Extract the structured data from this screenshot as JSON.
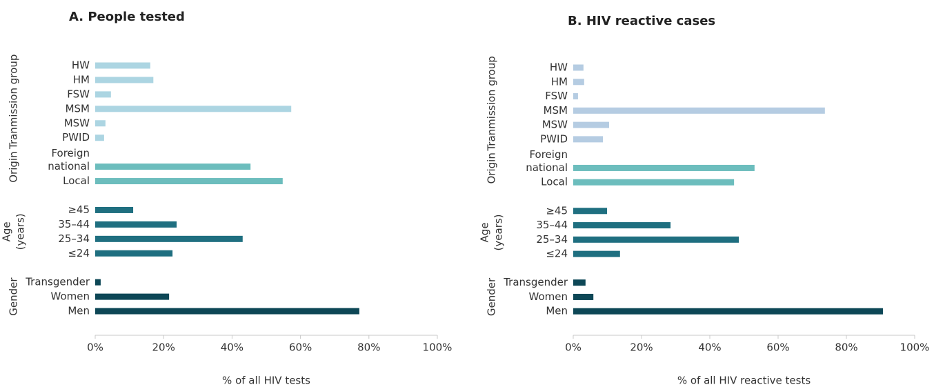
{
  "chart_data": [
    {
      "type": "bar",
      "orientation": "horizontal",
      "title": "A. People tested",
      "xlabel": "% of all HIV tests",
      "xlim": [
        0,
        100
      ],
      "xticks": [
        {
          "value": 0,
          "label": "0%"
        },
        {
          "value": 20,
          "label": "20%"
        },
        {
          "value": 40,
          "label": "40%"
        },
        {
          "value": 60,
          "label": "60%"
        },
        {
          "value": 80,
          "label": "80%"
        },
        {
          "value": 100,
          "label": "100%"
        }
      ],
      "groups": [
        {
          "name": [
            "Tranmission group"
          ],
          "color": "#acd5e2",
          "categories": [
            [
              "HW"
            ],
            [
              "HM"
            ],
            [
              "FSW"
            ],
            [
              "MSM"
            ],
            [
              "MSW"
            ],
            [
              "PWID"
            ]
          ],
          "values": [
            16.1,
            17,
            4.6,
            57.3,
            3,
            2.6
          ]
        },
        {
          "name": [
            "Origin"
          ],
          "color": "#6cbdbd",
          "categories": [
            [
              "Foreign",
              "national"
            ],
            [
              "Local"
            ]
          ],
          "values": [
            45.4,
            54.8
          ]
        },
        {
          "name": [
            "Age",
            "(years)"
          ],
          "color": "#1f6f80",
          "categories": [
            [
              "≥45"
            ],
            [
              "35–44"
            ],
            [
              "25–34"
            ],
            [
              "≤24"
            ]
          ],
          "values": [
            11.1,
            23.8,
            43.1,
            22.6
          ]
        },
        {
          "name": [
            "Gender"
          ],
          "color": "#0d4756",
          "categories": [
            [
              "Transgender"
            ],
            [
              "Women"
            ],
            [
              "Men"
            ]
          ],
          "values": [
            1.6,
            21.6,
            77.2
          ]
        }
      ]
    },
    {
      "type": "bar",
      "orientation": "horizontal",
      "title": "B. HIV reactive cases",
      "xlabel": "% of all HIV reactive tests",
      "xlim": [
        0,
        100
      ],
      "xticks": [
        {
          "value": 0,
          "label": "0%"
        },
        {
          "value": 20,
          "label": "20%"
        },
        {
          "value": 40,
          "label": "40%"
        },
        {
          "value": 60,
          "label": "60%"
        },
        {
          "value": 80,
          "label": "80%"
        },
        {
          "value": 100,
          "label": "100%"
        }
      ],
      "groups": [
        {
          "name": [
            "Tranmission group"
          ],
          "color": "#b5cce2",
          "categories": [
            [
              "HW"
            ],
            [
              "HM"
            ],
            [
              "FSW"
            ],
            [
              "MSM"
            ],
            [
              "MSW"
            ],
            [
              "PWID"
            ]
          ],
          "values": [
            3,
            3.2,
            1.4,
            73.7,
            10.5,
            8.7
          ]
        },
        {
          "name": [
            "Origin"
          ],
          "color": "#6cbdbd",
          "categories": [
            [
              "Foreign",
              "national"
            ],
            [
              "Local"
            ]
          ],
          "values": [
            53.1,
            47.1
          ]
        },
        {
          "name": [
            "Age",
            "(years)"
          ],
          "color": "#1f6f80",
          "categories": [
            [
              "≥45"
            ],
            [
              "35–44"
            ],
            [
              "25–34"
            ],
            [
              "≤24"
            ]
          ],
          "values": [
            9.9,
            28.5,
            48.5,
            13.7
          ]
        },
        {
          "name": [
            "Gender"
          ],
          "color": "#0d4756",
          "categories": [
            [
              "Transgender"
            ],
            [
              "Women"
            ],
            [
              "Men"
            ]
          ],
          "values": [
            3.6,
            5.9,
            90.7
          ]
        }
      ]
    }
  ]
}
